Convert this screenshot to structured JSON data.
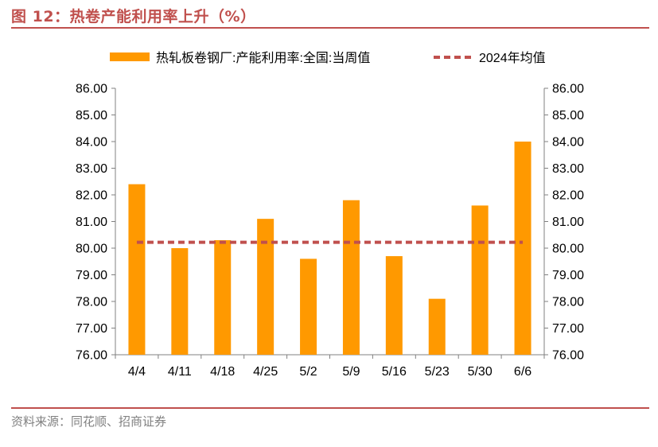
{
  "figure": {
    "title": "图 12：热卷产能利用率上升（%）",
    "source": "资料来源：同花顺、招商证券"
  },
  "colors": {
    "accent": "#c0504d",
    "bar": "#ff9900",
    "reference_line": "#c0504d",
    "axis": "#808080"
  },
  "chart_data": {
    "type": "bar",
    "title": "",
    "xlabel": "",
    "ylabel": "",
    "categories": [
      "4/4",
      "4/11",
      "4/18",
      "4/25",
      "5/2",
      "5/9",
      "5/16",
      "5/23",
      "5/30",
      "6/6"
    ],
    "series": [
      {
        "name": "热轧板卷钢厂:产能利用率:全国:当周值",
        "type": "bar",
        "values": [
          82.4,
          80.0,
          80.3,
          81.1,
          79.6,
          81.8,
          79.7,
          78.1,
          81.6,
          84.0
        ]
      },
      {
        "name": "2024年均值",
        "type": "line",
        "style": "dashed",
        "values": [
          80.22,
          80.22,
          80.22,
          80.22,
          80.22,
          80.22,
          80.22,
          80.22,
          80.22,
          80.22
        ]
      }
    ],
    "ylim": [
      76.0,
      86.0
    ],
    "yticks": [
      "76.00",
      "77.00",
      "78.00",
      "79.00",
      "80.00",
      "81.00",
      "82.00",
      "83.00",
      "84.00",
      "85.00",
      "86.00"
    ],
    "ytick_values": [
      76,
      77,
      78,
      79,
      80,
      81,
      82,
      83,
      84,
      85,
      86
    ],
    "secondary_axis": "mirror",
    "grid": false,
    "legend": "top"
  }
}
